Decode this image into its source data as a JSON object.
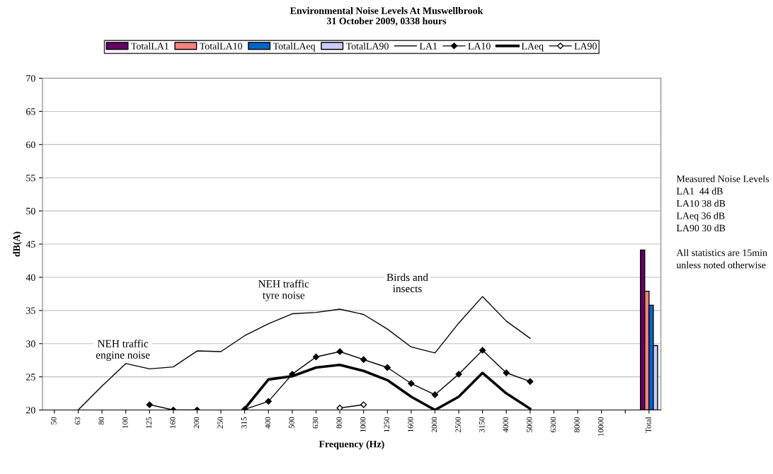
{
  "chart_data": {
    "type": "bar",
    "title": "Environmental Noise Levels At Muswellbrook\n31 October 2009, 0338 hours",
    "xlabel": "Frequency (Hz)",
    "ylabel": "dB(A)",
    "categories": [
      "50",
      "63",
      "80",
      "100",
      "125",
      "160",
      "200",
      "250",
      "315",
      "400",
      "500",
      "630",
      "800",
      "1000",
      "1250",
      "1600",
      "2000",
      "2500",
      "3150",
      "4000",
      "5000",
      "6300",
      "8000",
      "10000",
      null,
      "Total"
    ],
    "series": [
      {
        "name": "TotalLA1",
        "color": "#660066",
        "values": [
          null,
          null,
          null,
          null,
          null,
          null,
          null,
          null,
          null,
          null,
          null,
          null,
          null,
          null,
          null,
          null,
          null,
          null,
          null,
          null,
          null,
          null,
          null,
          null,
          null,
          44.1
        ]
      },
      {
        "name": "TotalLA10",
        "color": "#ff8080",
        "values": [
          null,
          null,
          null,
          null,
          null,
          null,
          null,
          null,
          null,
          null,
          null,
          null,
          null,
          null,
          null,
          null,
          null,
          null,
          null,
          null,
          null,
          null,
          null,
          null,
          null,
          37.9
        ]
      },
      {
        "name": "TotalLAeq",
        "color": "#0066cc",
        "values": [
          null,
          null,
          null,
          null,
          null,
          null,
          null,
          null,
          null,
          null,
          null,
          null,
          null,
          null,
          null,
          null,
          null,
          null,
          null,
          null,
          null,
          null,
          null,
          null,
          null,
          35.8
        ]
      },
      {
        "name": "TotalLA90",
        "color": "#ccccff",
        "values": [
          null,
          null,
          null,
          null,
          null,
          null,
          null,
          null,
          null,
          null,
          null,
          null,
          null,
          null,
          null,
          null,
          null,
          null,
          null,
          null,
          null,
          null,
          null,
          null,
          null,
          29.7
        ]
      },
      {
        "name": "LA1",
        "type": "line",
        "color": "#000000",
        "marker": "none",
        "values": [
          null,
          20.0,
          23.6,
          27.0,
          26.2,
          26.5,
          28.9,
          28.8,
          31.2,
          33.0,
          34.5,
          34.7,
          35.2,
          34.4,
          32.2,
          29.5,
          28.6,
          33.1,
          37.1,
          33.4,
          30.8,
          null,
          null,
          null,
          null,
          null
        ]
      },
      {
        "name": "LA10",
        "type": "line",
        "color": "#000000",
        "marker": "diamond",
        "values": [
          null,
          null,
          null,
          null,
          20.8,
          20.0,
          20.0,
          null,
          20.1,
          21.3,
          25.4,
          28.0,
          28.8,
          27.6,
          26.4,
          24.0,
          22.3,
          25.4,
          29.0,
          25.6,
          24.3,
          null,
          null,
          null,
          null,
          null
        ]
      },
      {
        "name": "LAeq",
        "type": "line",
        "color": "#000000",
        "marker": "none",
        "values": [
          null,
          null,
          null,
          null,
          null,
          null,
          null,
          null,
          20.2,
          24.6,
          25.1,
          26.4,
          26.8,
          25.9,
          24.5,
          22.0,
          20.0,
          22.0,
          25.6,
          22.5,
          20.2,
          null,
          null,
          null,
          null,
          null
        ]
      },
      {
        "name": "LA90",
        "type": "line",
        "color": "#000000",
        "marker": "diamond",
        "values": [
          null,
          null,
          null,
          null,
          null,
          null,
          null,
          null,
          null,
          null,
          null,
          null,
          20.3,
          20.8,
          null,
          null,
          null,
          null,
          null,
          null,
          null,
          null,
          null,
          null,
          null,
          null
        ]
      }
    ],
    "ylim": [
      20,
      70
    ],
    "yticks": [
      20,
      25,
      30,
      35,
      40,
      45,
      50,
      55,
      60,
      65,
      70
    ],
    "grid": "y",
    "legend": "top",
    "annotations": [
      "NEH traffic\nengine noise",
      "NEH traffic\ntyre noise",
      "Birds and\ninsects",
      "Measured Noise Levels\nLA1  44 dB\nLA10 38 dB\nLAeq 36 dB\nLA90 30 dB\n\nAll statistics are 15min\nunless noted otherwise"
    ]
  }
}
